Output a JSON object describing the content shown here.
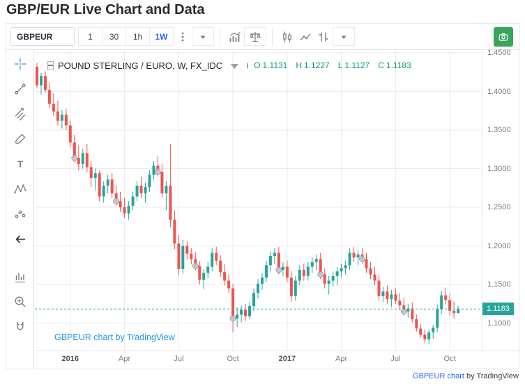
{
  "page": {
    "title": "GBP/EUR Live Chart and Data"
  },
  "toolbar": {
    "symbol": "GBPEUR",
    "intervals": [
      {
        "label": "1"
      },
      {
        "label": "30"
      },
      {
        "label": "1h"
      },
      {
        "label": "1W",
        "active": true
      }
    ],
    "icons": [
      "more-dots-icon",
      "interval-dropdown-icon",
      "indicators-icon",
      "compare-scales-icon",
      "candlestick-style-icon",
      "line-style-icon",
      "compare-icon",
      "style-dropdown-icon",
      "snapshot-camera-icon"
    ],
    "camera_color": "#3aa55d"
  },
  "left_toolbar": {
    "icons": [
      "crosshair-icon",
      "trend-line-icon",
      "pitchfork-icon",
      "brush-icon",
      "text-icon",
      "xabcd-pattern-icon",
      "forecast-icon",
      "back-arrow-icon",
      "bar-measure-icon",
      "zoom-in-icon",
      "magnet-icon"
    ]
  },
  "legend": {
    "title": "POUND STERLING / EURO, W, FX_IDC",
    "ohlc": [
      [
        "O",
        "1.1131"
      ],
      [
        "H",
        "1.1227"
      ],
      [
        "L",
        "1.1127"
      ],
      [
        "C",
        "1.1183"
      ]
    ]
  },
  "attribution": {
    "inner": "GBPEUR chart by TradingView",
    "bottom_link": "GBPEUR chart",
    "bottom_suffix": " by TradingView"
  },
  "chart_data": {
    "type": "candlestick",
    "title": "POUND STERLING / EURO",
    "symbol": "GBPEUR",
    "timeframe": "W",
    "exchange": "FX_IDC",
    "ylim": [
      1.0645,
      1.4536
    ],
    "right_offset": 5,
    "grid": true,
    "price_ticks": [
      {
        "price": 1.45,
        "label": "1.4500"
      },
      {
        "price": 1.4,
        "label": "1.4000"
      },
      {
        "price": 1.35,
        "label": "1.3500"
      },
      {
        "price": 1.3,
        "label": "1.3000"
      },
      {
        "price": 1.25,
        "label": "1.2500"
      },
      {
        "price": 1.2,
        "label": "1.2000"
      },
      {
        "price": 1.15,
        "label": "1.1500"
      },
      {
        "price": 1.1,
        "label": "1.1000"
      }
    ],
    "time_ticks": [
      {
        "i": 8,
        "label": "2016",
        "year": true
      },
      {
        "i": 21,
        "label": "Apr"
      },
      {
        "i": 34,
        "label": "Jul"
      },
      {
        "i": 47,
        "label": "Oct"
      },
      {
        "i": 60,
        "label": "2017",
        "year": true
      },
      {
        "i": 73,
        "label": "Apr"
      },
      {
        "i": 86,
        "label": "Jul"
      },
      {
        "i": 99,
        "label": "Oct"
      }
    ],
    "current_price": {
      "value": 1.1183,
      "label": "1.1183"
    },
    "last_ohlc": {
      "open": 1.1131,
      "high": 1.1227,
      "low": 1.1127,
      "close": 1.1183
    },
    "markers": [
      9,
      19,
      29,
      38,
      47,
      58,
      68,
      78,
      88
    ],
    "colors": {
      "up": "#26a69a",
      "down": "#ef5350",
      "grid": "#e8eaef",
      "accent": "#26a69a",
      "marker": "#c3c6cd",
      "axis_text": "#757983",
      "link_blue": "#2196f3",
      "active_blue": "#2962ff"
    },
    "candles": [
      [
        1.432,
        1.437,
        1.404,
        1.408
      ],
      [
        1.408,
        1.424,
        1.396,
        1.42
      ],
      [
        1.42,
        1.426,
        1.398,
        1.402
      ],
      [
        1.402,
        1.412,
        1.378,
        1.384
      ],
      [
        1.384,
        1.398,
        1.368,
        1.374
      ],
      [
        1.374,
        1.388,
        1.356,
        1.362
      ],
      [
        1.362,
        1.376,
        1.352,
        1.37
      ],
      [
        1.37,
        1.378,
        1.35,
        1.356
      ],
      [
        1.356,
        1.362,
        1.328,
        1.334
      ],
      [
        1.334,
        1.344,
        1.308,
        1.314
      ],
      [
        1.314,
        1.33,
        1.298,
        1.306
      ],
      [
        1.306,
        1.326,
        1.3,
        1.32
      ],
      [
        1.32,
        1.332,
        1.296,
        1.302
      ],
      [
        1.302,
        1.31,
        1.276,
        1.288
      ],
      [
        1.288,
        1.3,
        1.272,
        1.294
      ],
      [
        1.294,
        1.298,
        1.258,
        1.264
      ],
      [
        1.264,
        1.284,
        1.256,
        1.278
      ],
      [
        1.278,
        1.292,
        1.268,
        1.286
      ],
      [
        1.286,
        1.294,
        1.262,
        1.268
      ],
      [
        1.268,
        1.278,
        1.252,
        1.258
      ],
      [
        1.258,
        1.27,
        1.244,
        1.25
      ],
      [
        1.25,
        1.262,
        1.236,
        1.242
      ],
      [
        1.242,
        1.258,
        1.234,
        1.252
      ],
      [
        1.252,
        1.27,
        1.246,
        1.264
      ],
      [
        1.264,
        1.284,
        1.258,
        1.278
      ],
      [
        1.278,
        1.29,
        1.262,
        1.268
      ],
      [
        1.268,
        1.282,
        1.256,
        1.276
      ],
      [
        1.276,
        1.298,
        1.27,
        1.292
      ],
      [
        1.292,
        1.31,
        1.286,
        1.304
      ],
      [
        1.304,
        1.316,
        1.29,
        1.296
      ],
      [
        1.296,
        1.306,
        1.262,
        1.268
      ],
      [
        1.268,
        1.284,
        1.246,
        1.278
      ],
      [
        1.278,
        1.332,
        1.224,
        1.234
      ],
      [
        1.234,
        1.246,
        1.196,
        1.203
      ],
      [
        1.203,
        1.214,
        1.162,
        1.17
      ],
      [
        1.17,
        1.208,
        1.164,
        1.2
      ],
      [
        1.2,
        1.206,
        1.182,
        1.19
      ],
      [
        1.19,
        1.197,
        1.176,
        1.183
      ],
      [
        1.183,
        1.192,
        1.168,
        1.174
      ],
      [
        1.174,
        1.18,
        1.15,
        1.156
      ],
      [
        1.156,
        1.17,
        1.144,
        1.165
      ],
      [
        1.165,
        1.179,
        1.158,
        1.173
      ],
      [
        1.173,
        1.197,
        1.167,
        1.191
      ],
      [
        1.191,
        1.199,
        1.175,
        1.181
      ],
      [
        1.181,
        1.188,
        1.16,
        1.166
      ],
      [
        1.166,
        1.177,
        1.149,
        1.155
      ],
      [
        1.155,
        1.163,
        1.139,
        1.145
      ],
      [
        1.145,
        1.151,
        1.088,
        1.106
      ],
      [
        1.106,
        1.121,
        1.095,
        1.111
      ],
      [
        1.111,
        1.123,
        1.101,
        1.117
      ],
      [
        1.117,
        1.125,
        1.103,
        1.109
      ],
      [
        1.109,
        1.127,
        1.105,
        1.122
      ],
      [
        1.122,
        1.145,
        1.116,
        1.139
      ],
      [
        1.139,
        1.157,
        1.132,
        1.151
      ],
      [
        1.151,
        1.165,
        1.143,
        1.159
      ],
      [
        1.159,
        1.181,
        1.153,
        1.175
      ],
      [
        1.175,
        1.193,
        1.167,
        1.187
      ],
      [
        1.187,
        1.197,
        1.177,
        1.191
      ],
      [
        1.191,
        1.199,
        1.163,
        1.169
      ],
      [
        1.169,
        1.179,
        1.161,
        1.173
      ],
      [
        1.173,
        1.181,
        1.153,
        1.159
      ],
      [
        1.159,
        1.167,
        1.127,
        1.135
      ],
      [
        1.135,
        1.161,
        1.129,
        1.155
      ],
      [
        1.155,
        1.175,
        1.149,
        1.169
      ],
      [
        1.169,
        1.177,
        1.155,
        1.161
      ],
      [
        1.161,
        1.179,
        1.155,
        1.173
      ],
      [
        1.173,
        1.185,
        1.165,
        1.179
      ],
      [
        1.179,
        1.189,
        1.169,
        1.183
      ],
      [
        1.183,
        1.191,
        1.157,
        1.163
      ],
      [
        1.163,
        1.171,
        1.145,
        1.151
      ],
      [
        1.151,
        1.161,
        1.137,
        1.155
      ],
      [
        1.155,
        1.167,
        1.147,
        1.161
      ],
      [
        1.161,
        1.173,
        1.149,
        1.167
      ],
      [
        1.167,
        1.177,
        1.159,
        1.171
      ],
      [
        1.171,
        1.181,
        1.163,
        1.175
      ],
      [
        1.175,
        1.197,
        1.169,
        1.191
      ],
      [
        1.191,
        1.199,
        1.179,
        1.185
      ],
      [
        1.185,
        1.195,
        1.175,
        1.189
      ],
      [
        1.189,
        1.197,
        1.177,
        1.183
      ],
      [
        1.183,
        1.191,
        1.165,
        1.171
      ],
      [
        1.171,
        1.179,
        1.157,
        1.163
      ],
      [
        1.163,
        1.173,
        1.149,
        1.155
      ],
      [
        1.155,
        1.163,
        1.129,
        1.135
      ],
      [
        1.135,
        1.147,
        1.127,
        1.141
      ],
      [
        1.141,
        1.149,
        1.125,
        1.131
      ],
      [
        1.131,
        1.143,
        1.121,
        1.137
      ],
      [
        1.137,
        1.145,
        1.125,
        1.129
      ],
      [
        1.129,
        1.139,
        1.117,
        1.123
      ],
      [
        1.123,
        1.133,
        1.109,
        1.115
      ],
      [
        1.115,
        1.125,
        1.107,
        1.119
      ],
      [
        1.119,
        1.127,
        1.101,
        1.105
      ],
      [
        1.105,
        1.111,
        1.089,
        1.093
      ],
      [
        1.093,
        1.099,
        1.081,
        1.085
      ],
      [
        1.085,
        1.092,
        1.074,
        1.079
      ],
      [
        1.079,
        1.092,
        1.073,
        1.088
      ],
      [
        1.088,
        1.098,
        1.08,
        1.094
      ],
      [
        1.094,
        1.124,
        1.088,
        1.118
      ],
      [
        1.118,
        1.142,
        1.112,
        1.136
      ],
      [
        1.136,
        1.146,
        1.124,
        1.13
      ],
      [
        1.13,
        1.138,
        1.11,
        1.116
      ],
      [
        1.116,
        1.128,
        1.106,
        1.113
      ],
      [
        1.1131,
        1.1227,
        1.1127,
        1.1183
      ]
    ]
  }
}
